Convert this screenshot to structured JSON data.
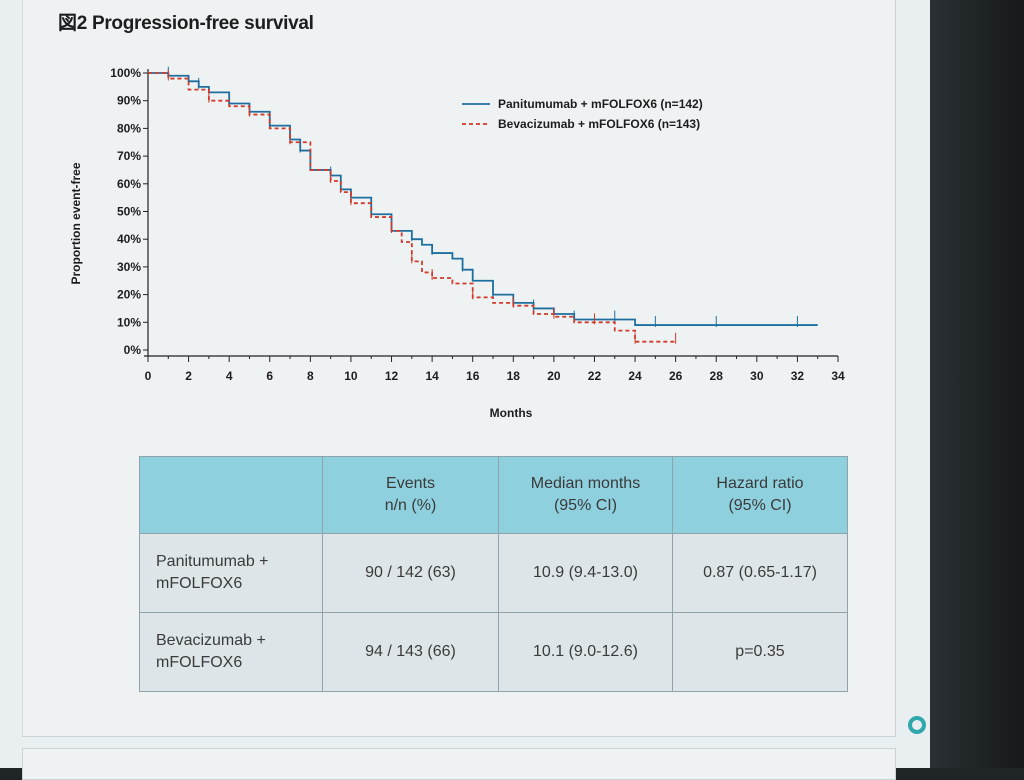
{
  "figure_title": "図2  Progression-free survival",
  "chart_data": {
    "type": "line",
    "title": "Progression-free survival",
    "xlabel": "Months",
    "ylabel": "Proportion event-free",
    "xlim": [
      0,
      34
    ],
    "ylim": [
      0,
      100
    ],
    "x_ticks": [
      "0",
      "2",
      "4",
      "6",
      "8",
      "10",
      "12",
      "14",
      "16",
      "18",
      "20",
      "22",
      "24",
      "26",
      "28",
      "30",
      "32",
      "34"
    ],
    "y_ticks": [
      "0%",
      "10%",
      "20%",
      "30%",
      "40%",
      "50%",
      "60%",
      "70%",
      "80%",
      "90%",
      "100%"
    ],
    "legend_position": "top-right",
    "series": [
      {
        "name": "Panitumumab + mFOLFOX6 (n=142)",
        "color": "#1f6f9e",
        "dash": "solid",
        "x": [
          0,
          1,
          2,
          2.5,
          3,
          4,
          5,
          6,
          7,
          7.5,
          8,
          9,
          9.5,
          10,
          11,
          12,
          12.5,
          13,
          13.5,
          14,
          15,
          15.5,
          16,
          17,
          18,
          19,
          20,
          21,
          22,
          23,
          24,
          25,
          26,
          28,
          30,
          32,
          33
        ],
        "y": [
          100,
          99,
          97,
          95,
          93,
          89,
          86,
          81,
          76,
          72,
          65,
          63,
          58,
          55,
          49,
          43,
          43,
          40,
          38,
          35,
          33,
          29,
          25,
          20,
          17,
          15,
          13,
          11,
          11,
          11,
          9,
          9,
          9,
          9,
          9,
          9,
          9
        ]
      },
      {
        "name": "Bevacizumab + mFOLFOX6 (n=143)",
        "color": "#d23a2a",
        "dash": "dashed",
        "x": [
          0,
          1,
          2,
          3,
          4,
          5,
          6,
          7,
          8,
          9,
          9.5,
          10,
          11,
          12,
          12.5,
          13,
          13.5,
          14,
          15,
          16,
          17,
          18,
          19,
          20,
          21,
          22,
          23,
          24,
          25,
          26
        ],
        "y": [
          100,
          98,
          94,
          90,
          88,
          85,
          80,
          75,
          65,
          61,
          57,
          53,
          48,
          43,
          39,
          32,
          28,
          26,
          24,
          19,
          17,
          16,
          13,
          12,
          10,
          10,
          7,
          3,
          3,
          3
        ]
      }
    ]
  },
  "table": {
    "headers": [
      "",
      "Events\nn/n (%)",
      "Median months\n(95% CI)",
      "Hazard ratio\n(95% CI)"
    ],
    "rows": [
      {
        "label": "Panitumumab +\nmFOLFOX6",
        "events": "90 / 142 (63)",
        "median": "10.9 (9.4-13.0)",
        "hr": "0.87 (0.65-1.17)"
      },
      {
        "label": "Bevacizumab +\nmFOLFOX6",
        "events": "94 / 143 (66)",
        "median": "10.1 (9.0-12.6)",
        "hr": "p=0.35"
      }
    ]
  }
}
